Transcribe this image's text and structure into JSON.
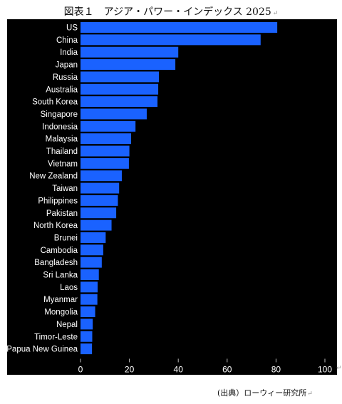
{
  "title": "図表１　アジア・パワー・インデックス 2025",
  "return_mark": "↵",
  "source": "(出典）ローウィー研究所",
  "chart_data": {
    "type": "bar",
    "orientation": "horizontal",
    "title": "",
    "xlabel": "",
    "ylabel": "",
    "xlim": [
      0,
      100
    ],
    "xticks": [
      0,
      20,
      40,
      60,
      80,
      100
    ],
    "grid": false,
    "legend": "none",
    "bar_color": "#1a62ff",
    "background_color": "#000000",
    "categories": [
      "US",
      "China",
      "India",
      "Japan",
      "Russia",
      "Australia",
      "South Korea",
      "Singapore",
      "Indonesia",
      "Malaysia",
      "Thailand",
      "Vietnam",
      "New Zealand",
      "Taiwan",
      "Philippines",
      "Pakistan",
      "North Korea",
      "Brunei",
      "Cambodia",
      "Bangladesh",
      "Sri Lanka",
      "Laos",
      "Myanmar",
      "Mongolia",
      "Nepal",
      "Timor-Leste",
      "Papua New Guinea"
    ],
    "values": [
      80.5,
      73.7,
      40.0,
      38.8,
      32.1,
      31.8,
      31.5,
      27.1,
      22.5,
      20.7,
      20.0,
      19.8,
      16.9,
      15.8,
      15.3,
      14.6,
      12.7,
      10.3,
      9.3,
      8.7,
      7.5,
      7.0,
      6.9,
      6.0,
      5.0,
      4.8,
      4.7
    ]
  }
}
